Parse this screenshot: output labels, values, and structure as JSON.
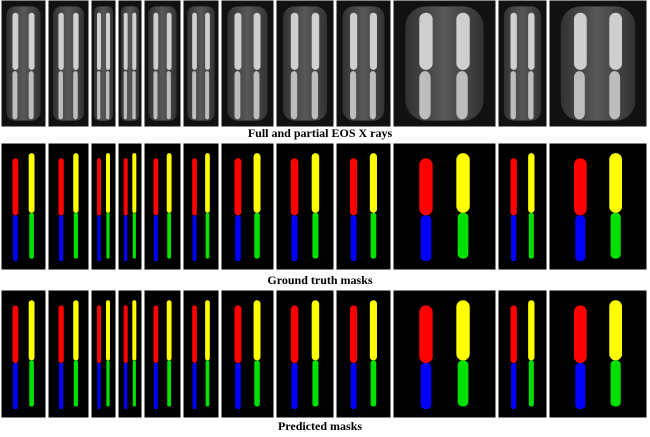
{
  "figure": {
    "captions": [
      "Full and partial EOS X rays",
      "Ground truth masks",
      "Predicted masks"
    ]
  }
}
